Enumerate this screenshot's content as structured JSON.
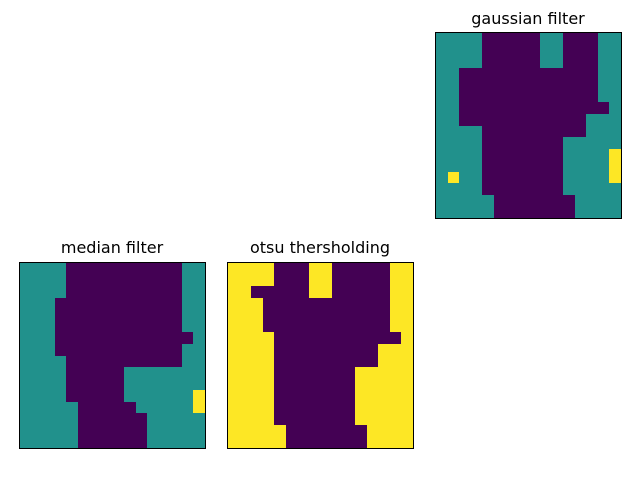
{
  "chart_data": [
    {
      "type": "heatmap",
      "title": "gaussian filter",
      "colormap": "viridis",
      "class_colors": {
        "0": "#440154",
        "1": "#21918c",
        "2": "#fde725"
      },
      "ticks": false,
      "grid": false,
      "xlabel": "",
      "ylabel": "",
      "size": [
        16,
        16
      ],
      "rows": [
        "1111000001100011",
        "1111000001100011",
        "1111000001100011",
        "1100000000000011",
        "1100000000000011",
        "1100000000000011",
        "1100000000000001",
        "1100000000000111",
        "1111000000000111",
        "1111000000011111",
        "1111000000011112",
        "1111000000011112",
        "1211000000011112",
        "1111000000011111",
        "1111100000001111",
        "1111100000001111"
      ]
    },
    {
      "type": "heatmap",
      "title": "median filter",
      "colormap": "viridis",
      "class_colors": {
        "0": "#440154",
        "1": "#21918c",
        "2": "#fde725"
      },
      "ticks": false,
      "grid": false,
      "xlabel": "",
      "ylabel": "",
      "size": [
        16,
        16
      ],
      "rows": [
        "1111000000000011",
        "1111000000000011",
        "1111000000000011",
        "1110000000000011",
        "1110000000000011",
        "1110000000000011",
        "1110000000000001",
        "1110000000000011",
        "1111000000000011",
        "1111000001111111",
        "1111000001111111",
        "1111000001111112",
        "1111100000111112",
        "1111100000011111",
        "1111100000011111",
        "1111100000011111"
      ]
    },
    {
      "type": "heatmap",
      "title": "otsu thersholding",
      "colormap": "viridis",
      "class_colors": {
        "0": "#440154",
        "2": "#fde725"
      },
      "ticks": false,
      "grid": false,
      "xlabel": "",
      "ylabel": "",
      "size": [
        16,
        16
      ],
      "rows": [
        "2222000220000022",
        "2222000220000022",
        "2200000220000022",
        "2220000000000022",
        "2220000000000022",
        "2220000000000022",
        "2222000000000002",
        "2222000000000222",
        "2222000000000222",
        "2222000000022222",
        "2222000000022222",
        "2222000000022222",
        "2222000000022222",
        "2222000000022222",
        "2222200000002222",
        "2222200000002222"
      ]
    }
  ]
}
